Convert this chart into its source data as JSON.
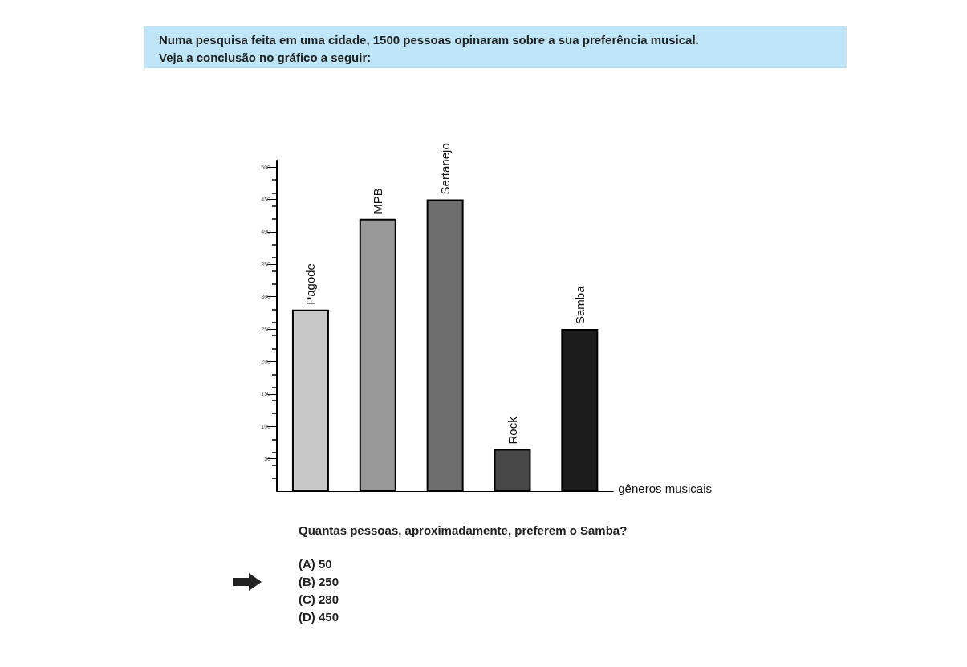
{
  "chart_data": {
    "type": "bar",
    "title": "Numa pesquisa feita em uma cidade, 1500 pessoas opinaram sobre a sua preferência musical. Veja a conclusão no gráfico a seguir:",
    "xlabel": "gêneros musicais",
    "categories": [
      "Pagode",
      "MPB",
      "Sertanejo",
      "Rock",
      "Samba"
    ],
    "values": [
      280,
      420,
      450,
      65,
      250
    ],
    "colors": [
      "#c8c8c8",
      "#999999",
      "#6e6e6e",
      "#474747",
      "#1c1c1c"
    ],
    "ylim": [
      0,
      510
    ],
    "yticks": [
      50,
      100,
      150,
      200,
      250,
      300,
      350,
      400,
      450,
      500
    ],
    "annotations": [
      "Quantas pessoas, aproximadamente, preferem o Samba?",
      "(A) 50",
      "(B) 250",
      "(C) 280",
      "(D) 450"
    ]
  }
}
